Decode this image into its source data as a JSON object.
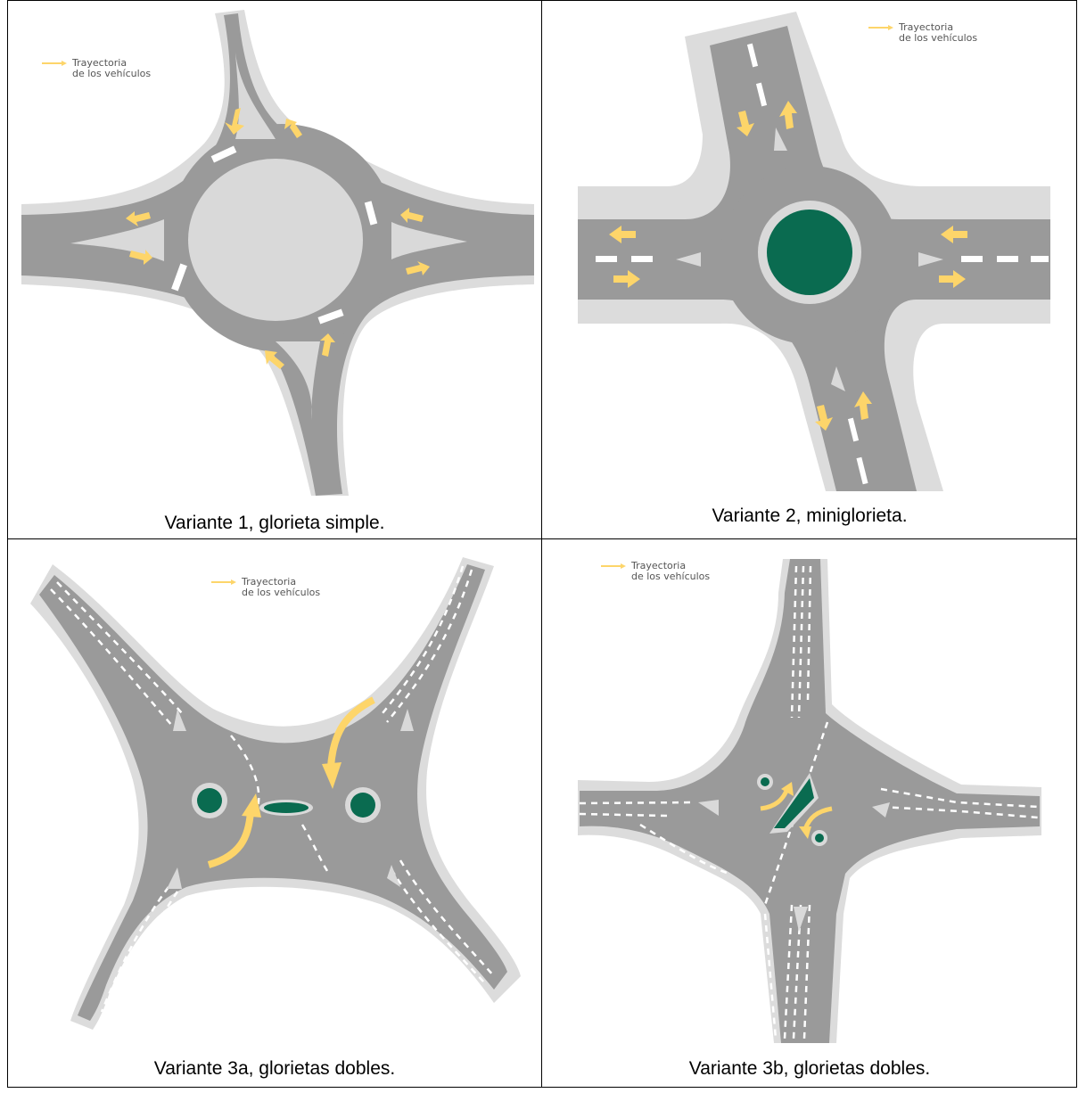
{
  "panels": [
    {
      "caption": "Variante 1, glorieta simple.",
      "legend": [
        "Trayectoria",
        "de los vehículos"
      ]
    },
    {
      "caption": "Variante 2, miniglorieta.",
      "legend": [
        "Trayectoria",
        "de los vehículos"
      ]
    },
    {
      "caption": "Variante 3a, glorietas dobles.",
      "legend": [
        "Trayectoria",
        "de los vehículos"
      ]
    },
    {
      "caption": "Variante 3b, glorietas dobles.",
      "legend": [
        "Trayectoria",
        "de los vehículos"
      ]
    }
  ],
  "colors": {
    "road": "#9a9a9a",
    "sidewalk": "#dcdcdc",
    "island": "#d9d9d9",
    "green_island": "#0a6b50",
    "arrow": "#fdd56a",
    "marking": "#ffffff"
  }
}
